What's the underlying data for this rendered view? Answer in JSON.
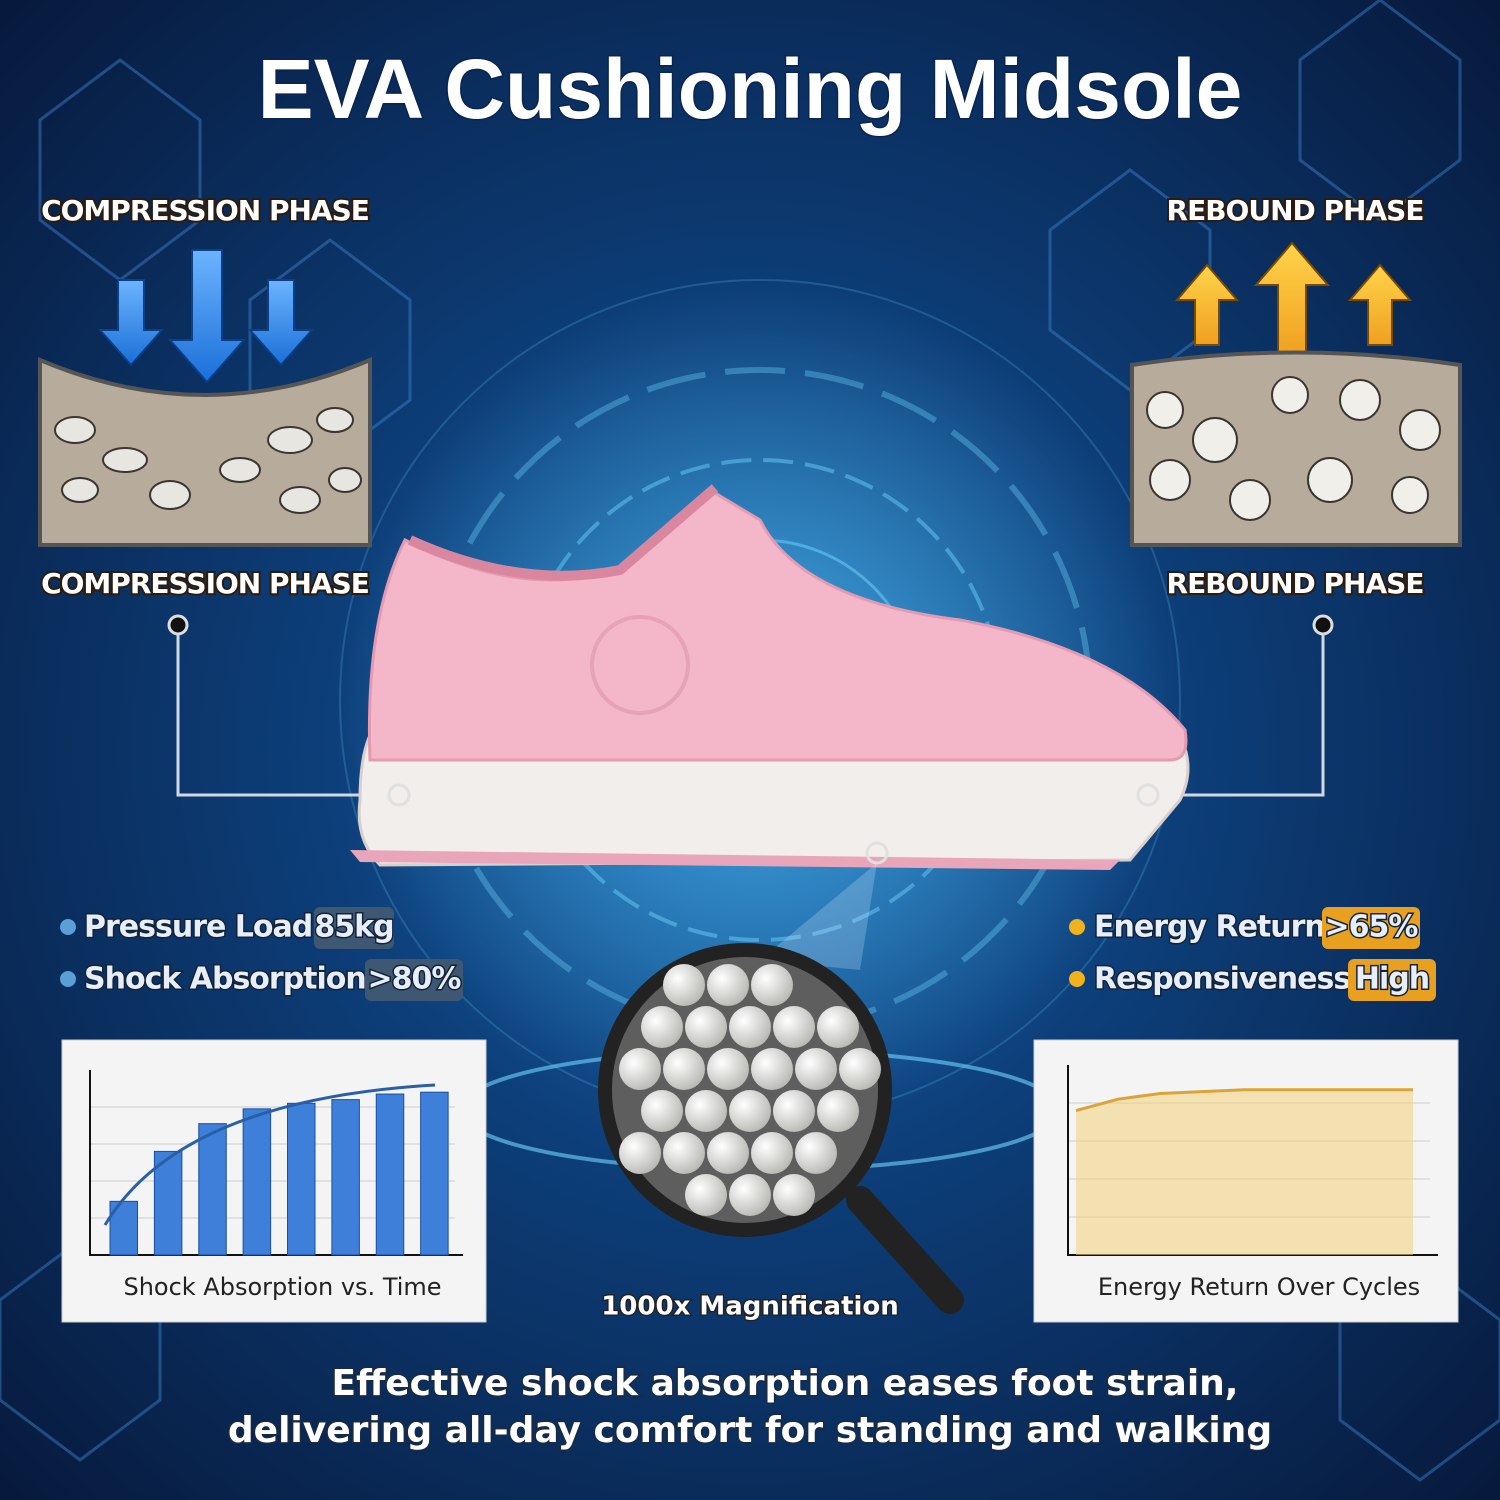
{
  "header": {
    "title": "EVA Cushioning Midsole"
  },
  "left_panel": {
    "top_label": "COMPRESSION PHASE",
    "bottom_label": "COMPRESSION PHASE"
  },
  "right_panel": {
    "top_label": "REBOUND PHASE",
    "bottom_label": "REBOUND PHASE"
  },
  "left_stats": [
    {
      "label": "Pressure Load:",
      "value": "85kg"
    },
    {
      "label": "Shock Absorption:",
      "value": ">80%"
    }
  ],
  "right_stats": [
    {
      "label": "Energy Return:",
      "value": ">65%"
    },
    {
      "label": "Responsiveness:",
      "value": "High"
    }
  ],
  "magnifier": {
    "label": "1000x Magnification"
  },
  "caption": {
    "lines": [
      "Effective shock absorption eases foot strain,",
      "delivering all-day comfort for standing and walking"
    ]
  },
  "chart_data": [
    {
      "type": "bar",
      "title": "Shock Absorption vs. Time",
      "values": [
        29,
        56,
        71,
        79,
        82,
        84,
        87,
        88
      ],
      "color": "#3d7fd9",
      "ylim": [
        0,
        100
      ]
    },
    {
      "type": "area",
      "title": "Energy Return Over Cycles",
      "values": [
        76,
        82,
        85,
        86,
        87,
        87,
        87,
        87,
        87
      ],
      "color": "#f3d27a",
      "ylim": [
        0,
        100
      ]
    }
  ]
}
